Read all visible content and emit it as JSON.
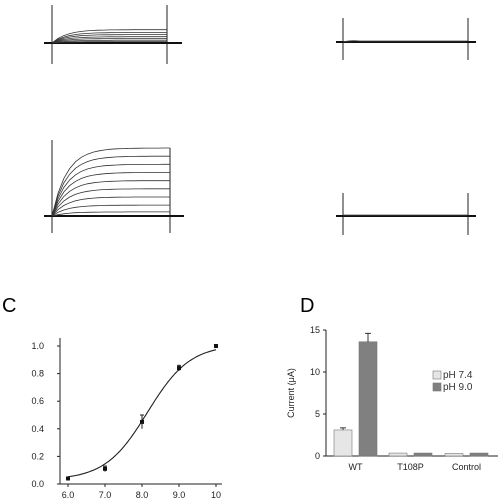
{
  "panel_labels": {
    "c": "C",
    "d": "D"
  },
  "chart_data": [
    {
      "type": "line",
      "panel": "traces",
      "description_free": true,
      "series": [
        {
          "values": [
            0.95,
            0.75,
            0.6,
            0.45,
            0.32,
            0.2,
            0.1
          ]
        },
        {
          "values": [
            0.05
          ]
        },
        {
          "values": [
            1.0,
            0.88,
            0.76,
            0.64,
            0.52,
            0.4,
            0.28,
            0.16,
            0.06
          ]
        },
        {
          "values": [
            0.03
          ]
        }
      ]
    },
    {
      "type": "scatter",
      "panel": "C",
      "x": [
        6.0,
        7.0,
        8.0,
        9.0,
        10.0
      ],
      "y": [
        0.04,
        0.11,
        0.45,
        0.84,
        1.0
      ],
      "error": [
        0.0,
        0.02,
        0.05,
        0.02,
        0.0
      ],
      "fit": "sigmoid",
      "xticks": [
        "6.0",
        "7.0",
        "8.0",
        "9.0",
        "10"
      ],
      "yticks": [
        "0.0",
        "0.2",
        "0.4",
        "0.6",
        "0.8",
        "1.0"
      ],
      "xlim": [
        6.0,
        10.0
      ],
      "ylim": [
        0.0,
        1.0
      ]
    },
    {
      "type": "bar",
      "panel": "D",
      "categories": [
        "WT",
        "T108P",
        "Control"
      ],
      "series": [
        {
          "name": "pH 7.4",
          "values": [
            3.1,
            0.35,
            0.3
          ],
          "errors": [
            0.25,
            0.05,
            0.05
          ],
          "color": "#e6e6e6"
        },
        {
          "name": "pH 9.0",
          "values": [
            13.6,
            0.35,
            0.35
          ],
          "errors": [
            1.0,
            0.05,
            0.05
          ],
          "color": "#808080"
        }
      ],
      "ylabel": "Current (μA)",
      "yticks": [
        "0",
        "5",
        "10",
        "15"
      ],
      "ylim": [
        0,
        15
      ]
    }
  ]
}
